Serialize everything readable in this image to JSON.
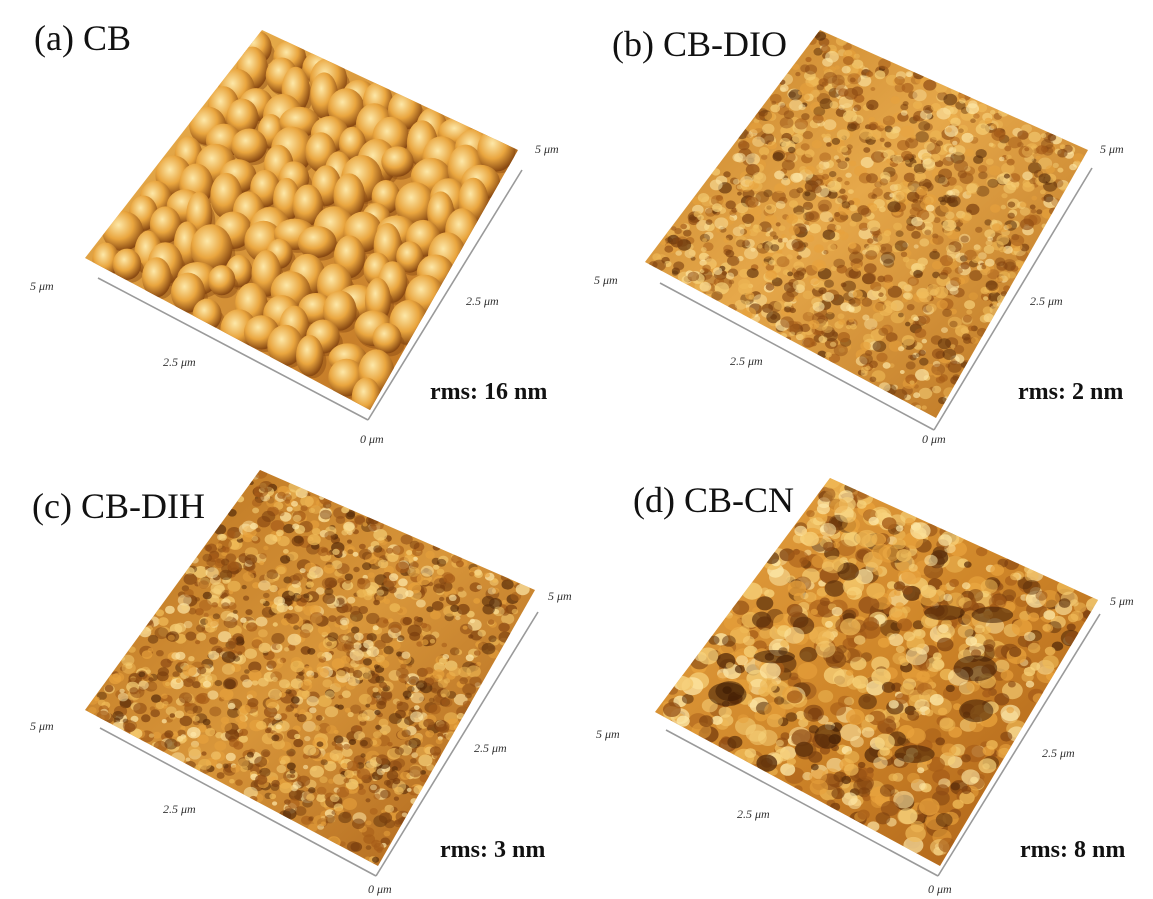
{
  "panels": [
    {
      "title": "(a) CB",
      "rms": "rms: 16 nm",
      "axis": {
        "corner": "0 μm",
        "mid_front": "2.5 μm",
        "left_end": "5 μm",
        "mid_right": "2.5 μm",
        "right_end": "5 μm"
      },
      "texture": "large-grains"
    },
    {
      "title": "(b) CB-DIO",
      "rms": "rms: 2 nm",
      "axis": {
        "corner": "0 μm",
        "mid_front": "2.5 μm",
        "left_end": "5 μm",
        "mid_right": "2.5 μm",
        "right_end": "5 μm"
      },
      "texture": "fine-smooth"
    },
    {
      "title": "(c) CB-DIH",
      "rms": "rms: 3 nm",
      "axis": {
        "corner": "0 μm",
        "mid_front": "2.5 μm",
        "left_end": "5 μm",
        "mid_right": "2.5 μm",
        "right_end": "5 μm"
      },
      "texture": "fine-grainy"
    },
    {
      "title": "(d) CB-CN",
      "rms": "rms: 8 nm",
      "axis": {
        "corner": "0 μm",
        "mid_front": "2.5 μm",
        "left_end": "5 μm",
        "mid_right": "2.5 μm",
        "right_end": "5 μm"
      },
      "texture": "rough-peaks"
    }
  ],
  "colors": {
    "surface_light": "#f7d27a",
    "surface_mid": "#d68a26",
    "surface_dark": "#5a2e0a",
    "axis_line": "#9a9a9a",
    "background": "#ffffff"
  }
}
